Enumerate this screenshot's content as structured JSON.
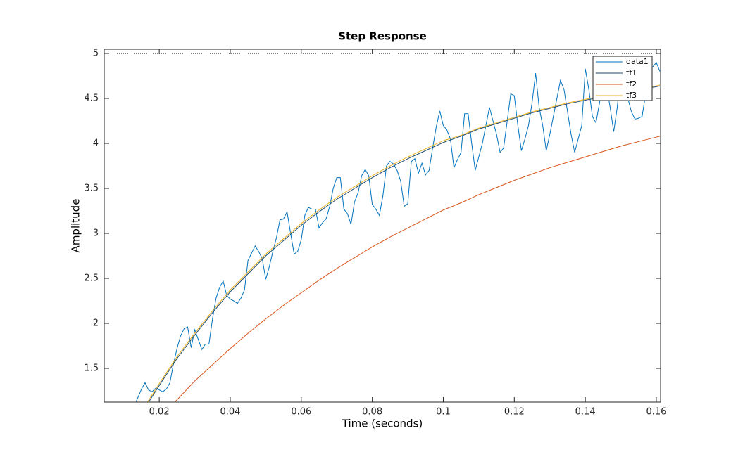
{
  "chart_data": {
    "type": "line",
    "title": "Step Response",
    "xlabel": "Time (seconds)",
    "ylabel": "Amplitude",
    "xlim": [
      0.0045,
      0.1612
    ],
    "ylim": [
      1.125,
      5.047
    ],
    "xticks": [
      0.02,
      0.04,
      0.06,
      0.08,
      0.1,
      0.12,
      0.14,
      0.16
    ],
    "yticks": [
      1.5,
      2,
      2.5,
      3,
      3.5,
      4,
      4.5,
      5
    ],
    "reference_lines": [
      5
    ],
    "legend": "upper right",
    "grid": false,
    "series": [
      {
        "name": "data1",
        "color": "#0072bd",
        "x": [
          0.0135,
          0.015,
          0.016,
          0.017,
          0.018,
          0.019,
          0.02,
          0.021,
          0.022,
          0.023,
          0.024,
          0.025,
          0.026,
          0.027,
          0.028,
          0.029,
          0.03,
          0.031,
          0.032,
          0.033,
          0.034,
          0.035,
          0.036,
          0.037,
          0.038,
          0.039,
          0.04,
          0.041,
          0.042,
          0.043,
          0.044,
          0.045,
          0.046,
          0.047,
          0.048,
          0.049,
          0.05,
          0.051,
          0.052,
          0.053,
          0.054,
          0.055,
          0.056,
          0.057,
          0.058,
          0.059,
          0.06,
          0.061,
          0.062,
          0.063,
          0.064,
          0.065,
          0.066,
          0.067,
          0.068,
          0.069,
          0.07,
          0.071,
          0.072,
          0.073,
          0.074,
          0.075,
          0.076,
          0.077,
          0.078,
          0.079,
          0.08,
          0.081,
          0.082,
          0.083,
          0.084,
          0.085,
          0.086,
          0.087,
          0.088,
          0.089,
          0.09,
          0.091,
          0.092,
          0.093,
          0.094,
          0.095,
          0.096,
          0.097,
          0.098,
          0.099,
          0.1,
          0.101,
          0.102,
          0.103,
          0.104,
          0.105,
          0.106,
          0.107,
          0.108,
          0.109,
          0.11,
          0.111,
          0.112,
          0.113,
          0.114,
          0.115,
          0.116,
          0.117,
          0.118,
          0.119,
          0.12,
          0.121,
          0.122,
          0.123,
          0.124,
          0.125,
          0.126,
          0.127,
          0.128,
          0.129,
          0.13,
          0.131,
          0.132,
          0.133,
          0.134,
          0.135,
          0.136,
          0.137,
          0.138,
          0.139,
          0.14,
          0.141,
          0.142,
          0.143,
          0.144,
          0.145,
          0.146,
          0.147,
          0.148,
          0.149,
          0.15,
          0.151,
          0.152,
          0.153,
          0.154,
          0.155,
          0.156,
          0.157,
          0.158,
          0.159,
          0.16,
          0.161
        ],
        "values": [
          1.13,
          1.27,
          1.34,
          1.26,
          1.24,
          1.28,
          1.26,
          1.24,
          1.27,
          1.34,
          1.55,
          1.72,
          1.86,
          1.94,
          1.96,
          1.73,
          1.93,
          1.82,
          1.71,
          1.77,
          1.77,
          2.05,
          2.28,
          2.4,
          2.47,
          2.31,
          2.27,
          2.25,
          2.22,
          2.28,
          2.37,
          2.7,
          2.78,
          2.86,
          2.8,
          2.72,
          2.49,
          2.63,
          2.8,
          2.95,
          3.15,
          3.16,
          3.24,
          3.0,
          2.77,
          2.8,
          2.93,
          3.2,
          3.29,
          3.27,
          3.27,
          3.06,
          3.12,
          3.16,
          3.3,
          3.5,
          3.62,
          3.62,
          3.27,
          3.22,
          3.1,
          3.35,
          3.45,
          3.64,
          3.71,
          3.64,
          3.32,
          3.27,
          3.2,
          3.42,
          3.75,
          3.8,
          3.77,
          3.7,
          3.58,
          3.3,
          3.33,
          3.8,
          3.83,
          3.67,
          3.78,
          3.65,
          3.7,
          3.95,
          4.18,
          4.36,
          4.2,
          4.15,
          4.05,
          3.73,
          3.82,
          3.9,
          4.33,
          4.33,
          4.0,
          3.7,
          3.85,
          4.0,
          4.2,
          4.4,
          4.25,
          4.1,
          3.9,
          3.95,
          4.25,
          4.55,
          4.53,
          4.2,
          3.92,
          4.05,
          4.2,
          4.45,
          4.78,
          4.4,
          4.2,
          3.92,
          4.1,
          4.3,
          4.5,
          4.7,
          4.6,
          4.35,
          4.1,
          3.9,
          4.05,
          4.2,
          4.83,
          4.6,
          4.3,
          4.23,
          4.45,
          4.65,
          4.63,
          4.4,
          4.13,
          4.4,
          4.82,
          4.65,
          4.5,
          4.35,
          4.27,
          4.28,
          4.3,
          4.55,
          4.8,
          4.85,
          4.9,
          4.8
        ]
      },
      {
        "name": "tf1",
        "color": "#1d4a6e",
        "x": [
          0.015,
          0.02,
          0.025,
          0.03,
          0.035,
          0.04,
          0.045,
          0.05,
          0.055,
          0.06,
          0.065,
          0.07,
          0.075,
          0.08,
          0.085,
          0.09,
          0.095,
          0.1,
          0.105,
          0.11,
          0.115,
          0.12,
          0.125,
          0.13,
          0.135,
          0.14,
          0.145,
          0.15,
          0.155,
          0.16,
          0.161
        ],
        "values": [
          1.0,
          1.31,
          1.61,
          1.87,
          2.12,
          2.35,
          2.55,
          2.75,
          2.92,
          3.09,
          3.24,
          3.38,
          3.5,
          3.62,
          3.73,
          3.83,
          3.92,
          4.01,
          4.08,
          4.16,
          4.22,
          4.28,
          4.34,
          4.39,
          4.44,
          4.48,
          4.52,
          4.56,
          4.6,
          4.63,
          4.64
        ]
      },
      {
        "name": "tf2",
        "color": "#d95319",
        "x": [
          0.02,
          0.025,
          0.03,
          0.035,
          0.04,
          0.045,
          0.05,
          0.055,
          0.06,
          0.065,
          0.07,
          0.075,
          0.08,
          0.085,
          0.09,
          0.095,
          0.1,
          0.105,
          0.11,
          0.115,
          0.12,
          0.125,
          0.13,
          0.135,
          0.14,
          0.145,
          0.15,
          0.155,
          0.16,
          0.161
        ],
        "values": [
          0.95,
          1.15,
          1.36,
          1.54,
          1.72,
          1.89,
          2.05,
          2.2,
          2.34,
          2.48,
          2.61,
          2.73,
          2.85,
          2.96,
          3.06,
          3.16,
          3.26,
          3.34,
          3.43,
          3.51,
          3.59,
          3.66,
          3.73,
          3.79,
          3.85,
          3.91,
          3.97,
          4.02,
          4.07,
          4.08
        ]
      },
      {
        "name": "tf3",
        "color": "#edb120",
        "x": [
          0.015,
          0.02,
          0.025,
          0.03,
          0.035,
          0.04,
          0.045,
          0.05,
          0.055,
          0.06,
          0.065,
          0.07,
          0.075,
          0.08,
          0.085,
          0.09,
          0.095,
          0.1,
          0.105,
          0.11,
          0.115,
          0.12,
          0.125,
          0.13,
          0.135,
          0.14,
          0.145,
          0.15,
          0.155,
          0.16,
          0.161
        ],
        "values": [
          1.02,
          1.33,
          1.63,
          1.89,
          2.14,
          2.37,
          2.57,
          2.77,
          2.94,
          3.11,
          3.26,
          3.4,
          3.52,
          3.64,
          3.75,
          3.85,
          3.94,
          4.03,
          4.09,
          4.17,
          4.23,
          4.29,
          4.35,
          4.4,
          4.45,
          4.49,
          4.53,
          4.57,
          4.61,
          4.64,
          4.65
        ]
      }
    ]
  }
}
